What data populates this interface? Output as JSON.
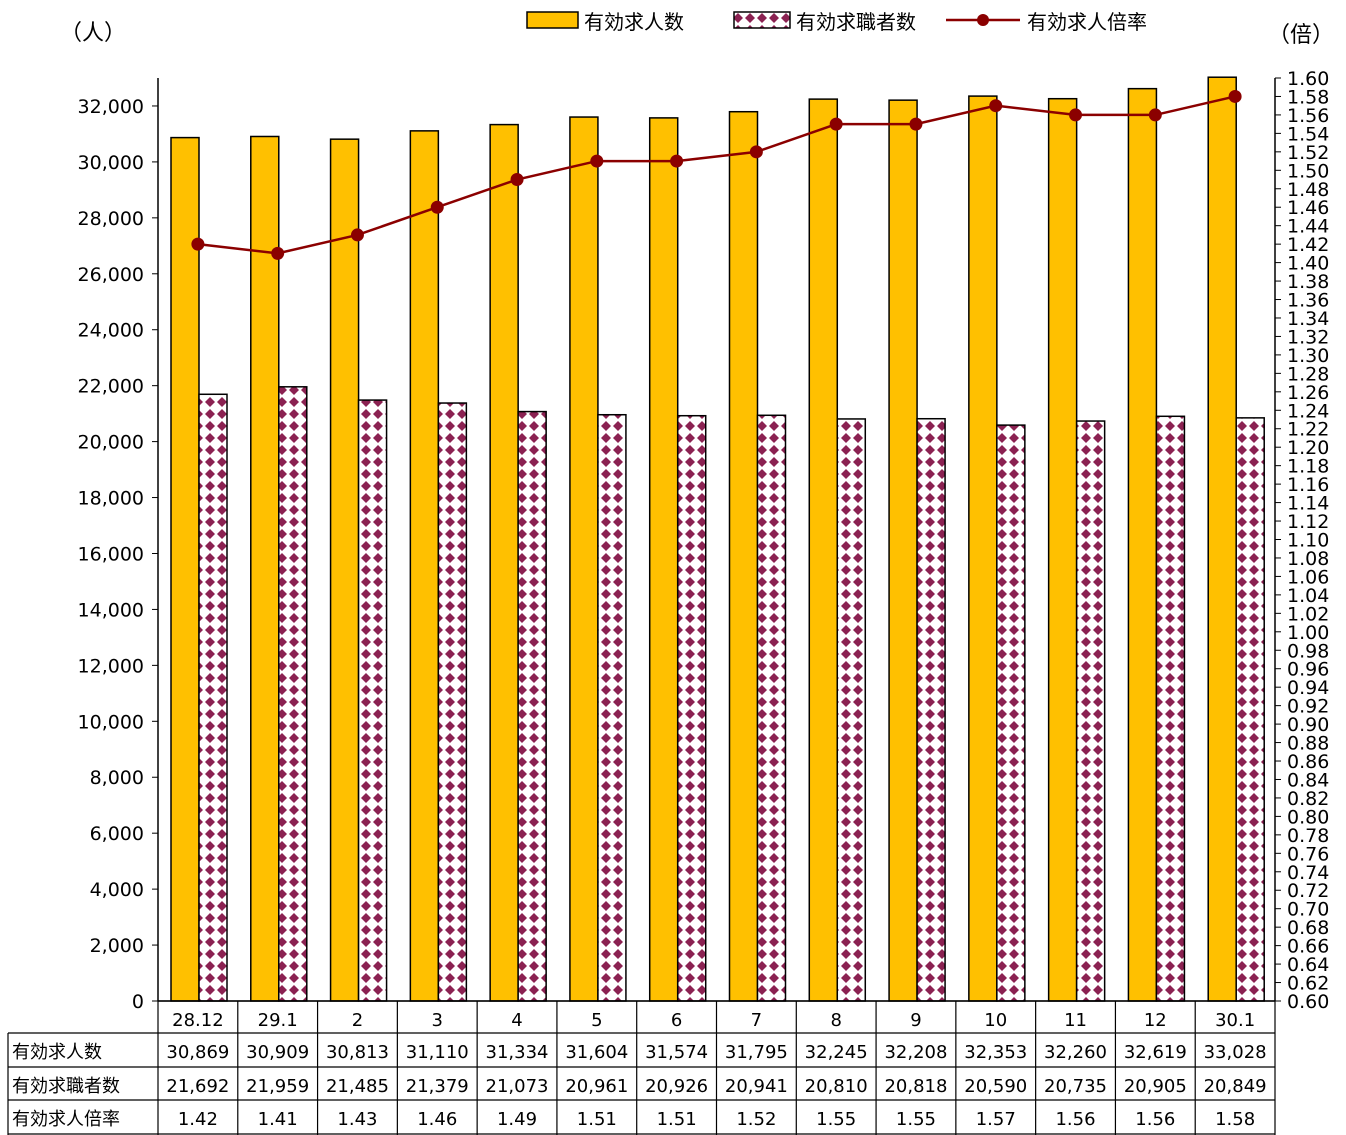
{
  "chart_data": {
    "type": "bar",
    "title": "",
    "y_unit_label": "（人）",
    "y2_unit_label": "（倍）",
    "categories": [
      "28.12",
      "29.1",
      "2",
      "3",
      "4",
      "5",
      "6",
      "7",
      "8",
      "9",
      "10",
      "11",
      "12",
      "30.1"
    ],
    "ylim": [
      0,
      33000
    ],
    "y_ticks": [
      "0",
      "2,000",
      "4,000",
      "6,000",
      "8,000",
      "10,000",
      "12,000",
      "14,000",
      "16,000",
      "18,000",
      "20,000",
      "22,000",
      "24,000",
      "26,000",
      "28,000",
      "30,000",
      "32,000"
    ],
    "y2lim": [
      0.6,
      1.6
    ],
    "y2_ticks": [
      "0.60",
      "0.62",
      "0.64",
      "0.66",
      "0.68",
      "0.70",
      "0.72",
      "0.74",
      "0.76",
      "0.78",
      "0.80",
      "0.82",
      "0.84",
      "0.86",
      "0.88",
      "0.90",
      "0.92",
      "0.94",
      "0.96",
      "0.98",
      "1.00",
      "1.02",
      "1.04",
      "1.06",
      "1.08",
      "1.10",
      "1.12",
      "1.14",
      "1.16",
      "1.18",
      "1.20",
      "1.22",
      "1.24",
      "1.26",
      "1.28",
      "1.30",
      "1.32",
      "1.34",
      "1.36",
      "1.38",
      "1.40",
      "1.42",
      "1.44",
      "1.46",
      "1.48",
      "1.50",
      "1.52",
      "1.54",
      "1.56",
      "1.58",
      "1.60"
    ],
    "series": [
      {
        "name": "有効求人数",
        "type": "bar",
        "axis": "left",
        "color": "#FFC000",
        "values": [
          30869,
          30909,
          30813,
          31110,
          31334,
          31604,
          31574,
          31795,
          32245,
          32208,
          32353,
          32260,
          32619,
          33028
        ],
        "labels": [
          "30,869",
          "30,909",
          "30,813",
          "31,110",
          "31,334",
          "31,604",
          "31,574",
          "31,795",
          "32,245",
          "32,208",
          "32,353",
          "32,260",
          "32,619",
          "33,028"
        ]
      },
      {
        "name": "有効求職者数",
        "type": "bar",
        "axis": "left",
        "color": "#8B2252",
        "pattern": "diamond",
        "values": [
          21692,
          21959,
          21485,
          21379,
          21073,
          20961,
          20926,
          20941,
          20810,
          20818,
          20590,
          20735,
          20905,
          20849
        ],
        "labels": [
          "21,692",
          "21,959",
          "21,485",
          "21,379",
          "21,073",
          "20,961",
          "20,926",
          "20,941",
          "20,810",
          "20,818",
          "20,590",
          "20,735",
          "20,905",
          "20,849"
        ]
      },
      {
        "name": "有効求人倍率",
        "type": "line",
        "axis": "right",
        "color": "#8B0000",
        "values": [
          1.42,
          1.41,
          1.43,
          1.46,
          1.49,
          1.51,
          1.51,
          1.52,
          1.55,
          1.55,
          1.57,
          1.56,
          1.56,
          1.58
        ],
        "labels": [
          "1.42",
          "1.41",
          "1.43",
          "1.46",
          "1.49",
          "1.51",
          "1.51",
          "1.52",
          "1.55",
          "1.55",
          "1.57",
          "1.56",
          "1.56",
          "1.58"
        ]
      }
    ],
    "legend_position": "top-right",
    "grid": false,
    "data_table": true
  }
}
